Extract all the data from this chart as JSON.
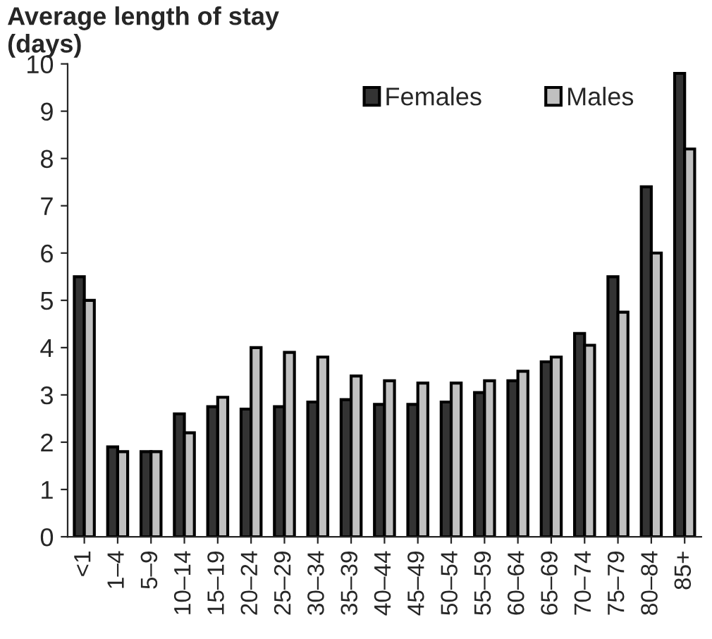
{
  "chart_data": {
    "type": "bar",
    "ylabel": "Average length of stay\n(days)",
    "categories": [
      "<1",
      "1–4",
      "5–9",
      "10–14",
      "15–19",
      "20–24",
      "25–29",
      "30–34",
      "35–39",
      "40–44",
      "45–49",
      "50–54",
      "55–59",
      "60–64",
      "65–69",
      "70–74",
      "75–79",
      "80–84",
      "85+"
    ],
    "series": [
      {
        "name": "Females",
        "color": "#333333",
        "values": [
          5.5,
          1.9,
          1.8,
          2.6,
          2.75,
          2.7,
          2.75,
          2.85,
          2.9,
          2.8,
          2.8,
          2.85,
          3.05,
          3.3,
          3.7,
          4.3,
          5.5,
          7.4,
          9.8
        ]
      },
      {
        "name": "Males",
        "color": "#c0c0c0",
        "values": [
          5.0,
          1.8,
          1.8,
          2.2,
          2.95,
          4.0,
          3.9,
          3.8,
          3.4,
          3.3,
          3.25,
          3.25,
          3.3,
          3.5,
          3.8,
          4.05,
          4.75,
          6.0,
          8.2
        ]
      }
    ],
    "ylim": [
      0,
      10
    ],
    "yticks": [
      0,
      1,
      2,
      3,
      4,
      5,
      6,
      7,
      8,
      9,
      10
    ],
    "grid": false,
    "legend": "top right"
  }
}
